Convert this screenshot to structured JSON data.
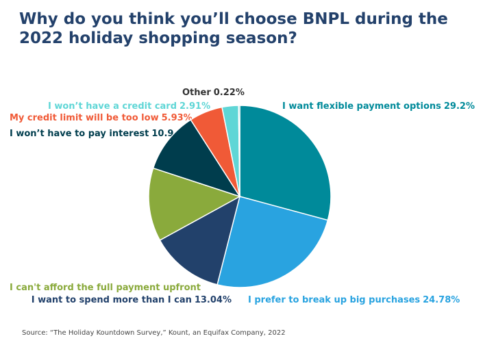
{
  "chart_data": {
    "type": "pie",
    "title": "Why do you think you’ll choose BNPL during the 2022 holiday shopping season?",
    "categories": [
      "I want flexible payment options",
      "I prefer to break up big purchases",
      "I want to spend more than I can",
      "I can't afford the full payment upfront",
      "I won’t have to pay interest",
      "My credit limit will be too low",
      "I won’t have a credit card",
      "Other"
    ],
    "values": [
      29.2,
      24.78,
      13.04,
      13.02,
      10.9,
      5.93,
      2.91,
      0.22
    ],
    "value_labels": [
      "29.2%",
      "24.78%",
      "13.04%",
      null,
      "10.9",
      "5.93%",
      "2.91%",
      "0.22%"
    ],
    "colors": [
      "#008a9a",
      "#29a3e0",
      "#22416b",
      "#8aaa3c",
      "#003d4d",
      "#f05a37",
      "#5fd6d6",
      "#2aa6a6"
    ],
    "source": "Source: “The Holiday Kountdown Survey,” Kount, an Equifax Company, 2022"
  }
}
